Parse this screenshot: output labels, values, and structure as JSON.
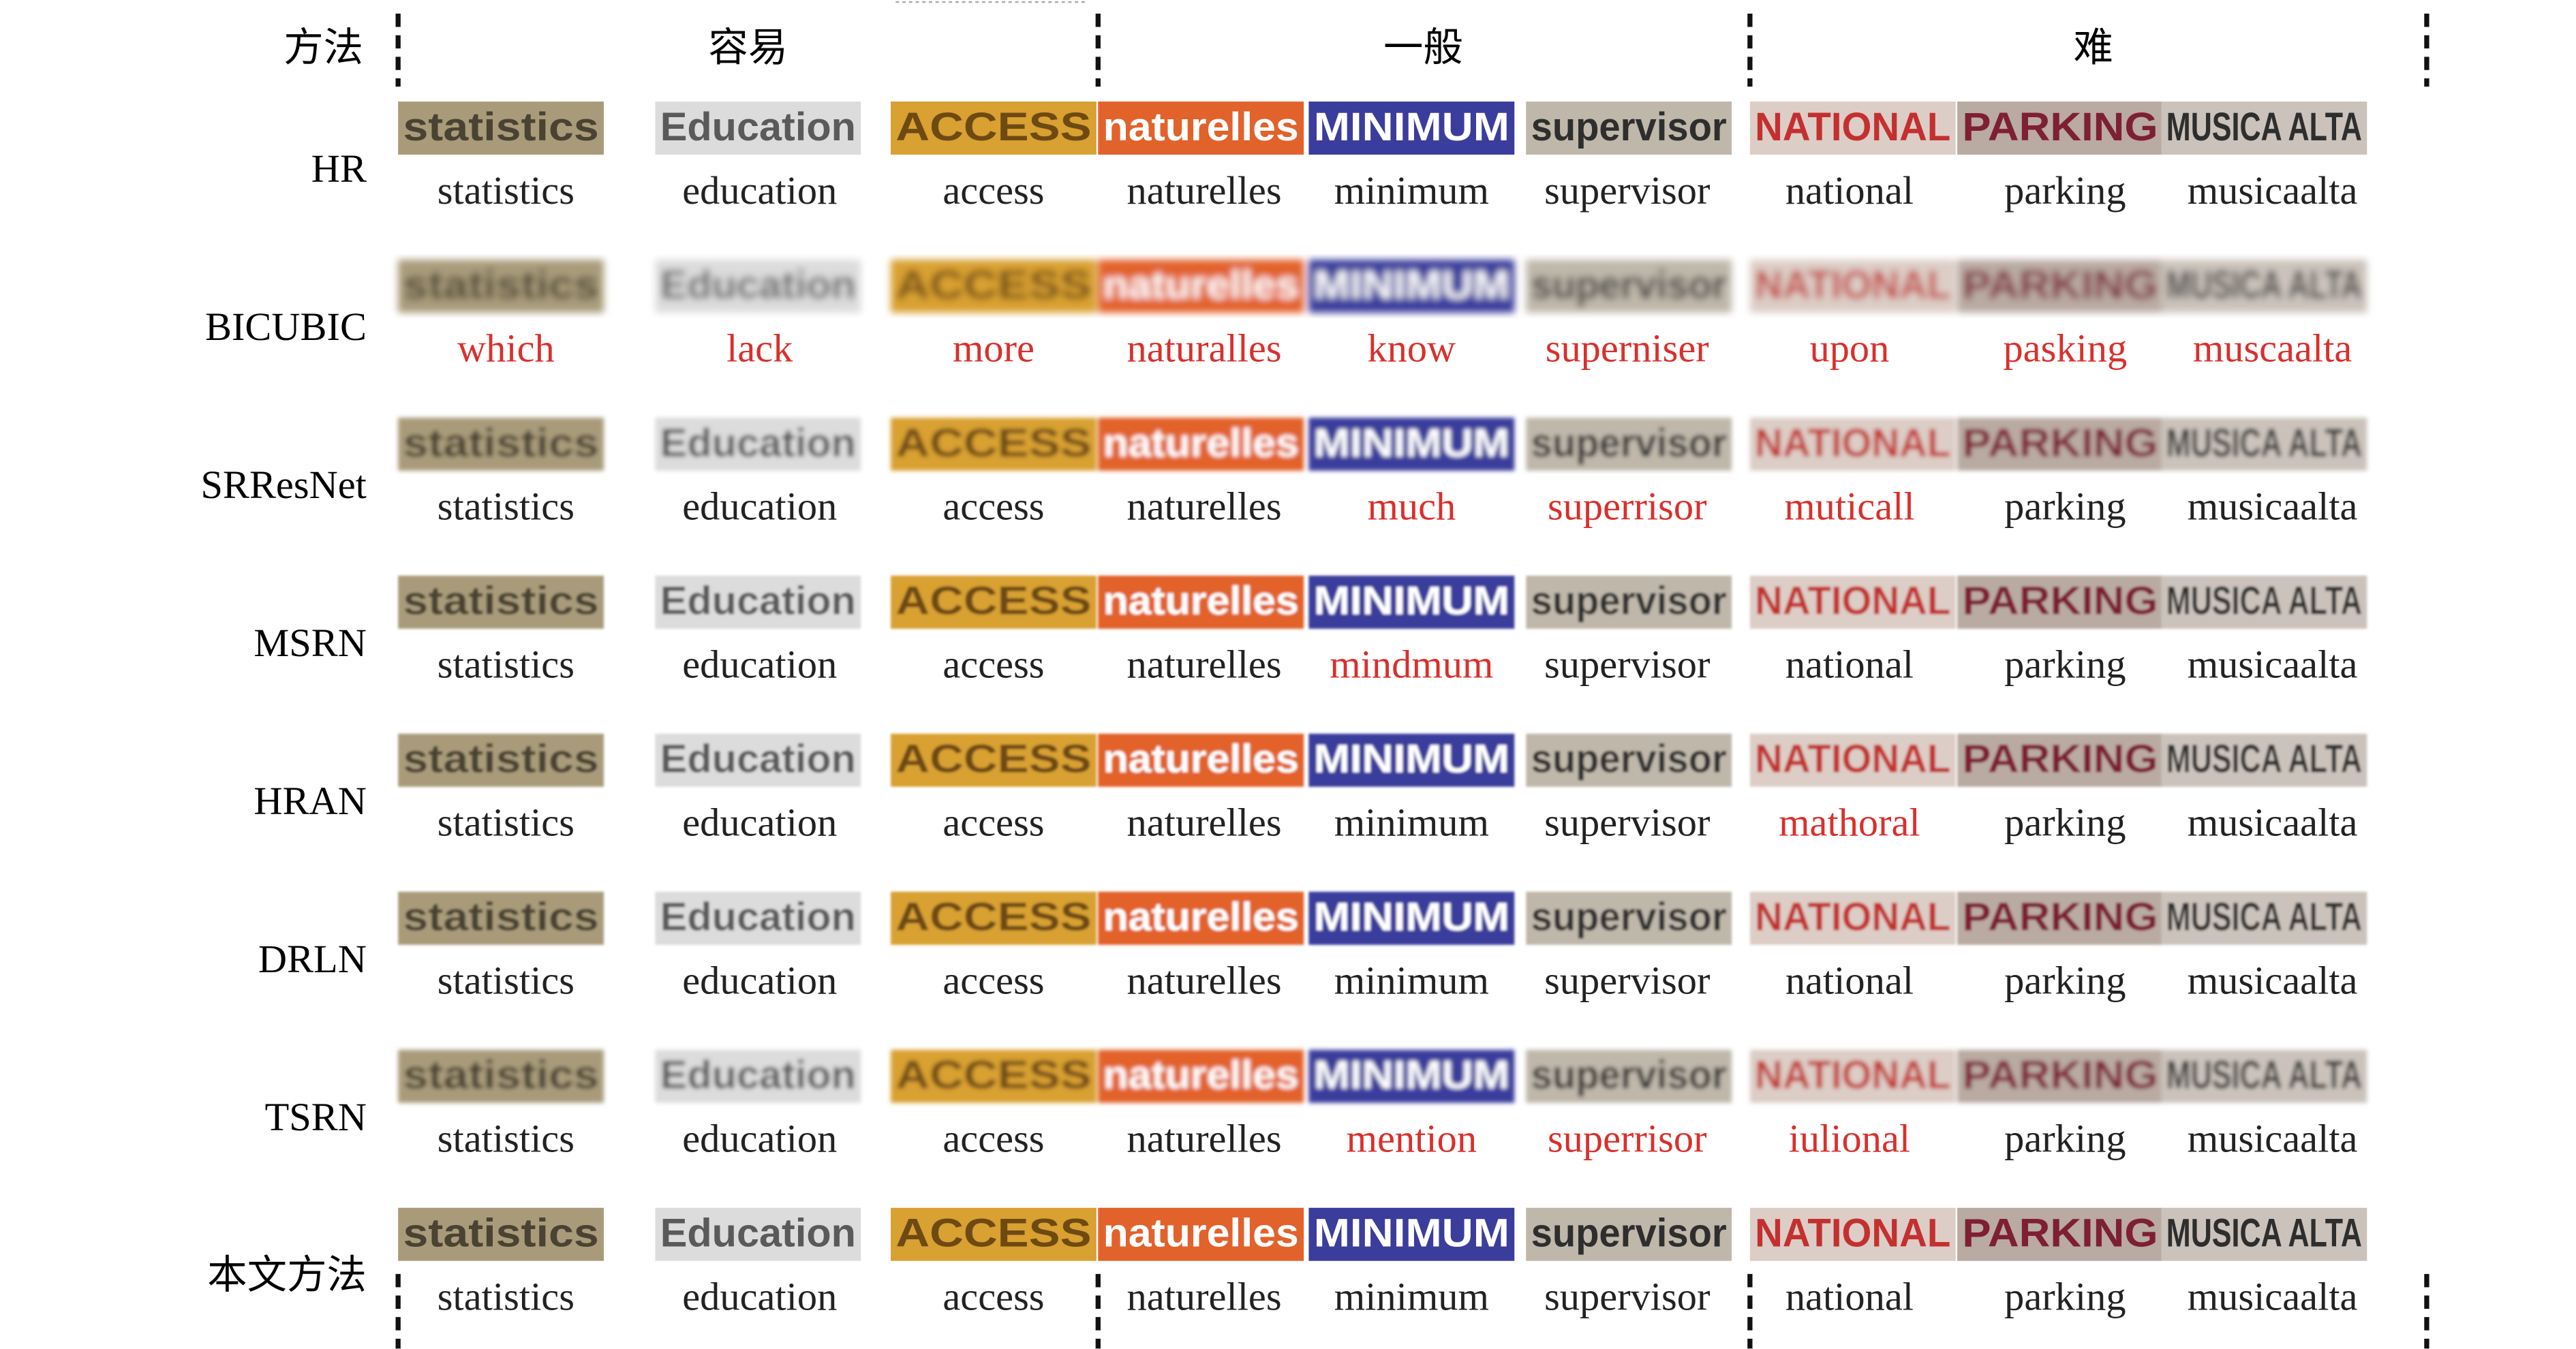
{
  "header": {
    "method": "方法",
    "groups": [
      "容易",
      "一般",
      "难"
    ]
  },
  "images": [
    {
      "text": "statistics",
      "bg": "#a99b7a",
      "fg": "#4a4232"
    },
    {
      "text": "Education",
      "bg": "#dcdcdc",
      "fg": "#5a5a5a"
    },
    {
      "text": "ACCESS",
      "bg": "#d9a032",
      "fg": "#6e4a12"
    },
    {
      "text": "naturelles",
      "bg": "#e2622c",
      "fg": "#ffffff"
    },
    {
      "text": "MINIMUM",
      "bg": "#3b3d9c",
      "fg": "#ffffff"
    },
    {
      "text": "supervisor",
      "bg": "#bfb7aa",
      "fg": "#2e2e2e"
    },
    {
      "text": "NATIONAL",
      "bg": "#dccdc6",
      "fg": "#c3302f"
    },
    {
      "text": "PARKING",
      "bg": "#b9aaa2",
      "fg": "#7e1f33"
    },
    {
      "text": "MUSICA ALTA",
      "bg": "#cbc3bb",
      "fg": "#2e2e2e"
    }
  ],
  "rows": [
    {
      "method": "HR",
      "predictions": [
        "statistics",
        "education",
        "access",
        "naturelles",
        "minimum",
        "supervisor",
        "national",
        "parking",
        "musicaalta"
      ],
      "colors": [
        "#222",
        "#222",
        "#222",
        "#222",
        "#222",
        "#222",
        "#222",
        "#222",
        "#222"
      ]
    },
    {
      "method": "BICUBIC",
      "predictions": [
        "which",
        "lack",
        "more",
        "naturalles",
        "know",
        "superniser",
        "upon",
        "pasking",
        "muscaalta"
      ],
      "colors": [
        "#d9302c",
        "#d9302c",
        "#d9302c",
        "#d9302c",
        "#d9302c",
        "#d9302c",
        "#d9302c",
        "#d9302c",
        "#d9302c"
      ]
    },
    {
      "method": "SRResNet",
      "predictions": [
        "statistics",
        "education",
        "access",
        "naturelles",
        "much",
        "superrisor",
        "muticall",
        "parking",
        "musicaalta"
      ],
      "colors": [
        "#222",
        "#222",
        "#222",
        "#222",
        "#d9302c",
        "#d9302c",
        "#d9302c",
        "#222",
        "#222"
      ]
    },
    {
      "method": "MSRN",
      "predictions": [
        "statistics",
        "education",
        "access",
        "naturelles",
        "mindmum",
        "supervisor",
        "national",
        "parking",
        "musicaalta"
      ],
      "colors": [
        "#222",
        "#222",
        "#222",
        "#222",
        "#d9302c",
        "#222",
        "#222",
        "#222",
        "#222"
      ]
    },
    {
      "method": "HRAN",
      "predictions": [
        "statistics",
        "education",
        "access",
        "naturelles",
        "minimum",
        "supervisor",
        "mathoral",
        "parking",
        "musicaalta"
      ],
      "colors": [
        "#222",
        "#222",
        "#222",
        "#222",
        "#222",
        "#222",
        "#d9302c",
        "#222",
        "#222"
      ]
    },
    {
      "method": "DRLN",
      "predictions": [
        "statistics",
        "education",
        "access",
        "naturelles",
        "minimum",
        "supervisor",
        "national",
        "parking",
        "musicaalta"
      ],
      "colors": [
        "#222",
        "#222",
        "#222",
        "#222",
        "#222",
        "#222",
        "#222",
        "#222",
        "#222"
      ]
    },
    {
      "method": "TSRN",
      "predictions": [
        "statistics",
        "education",
        "access",
        "naturelles",
        "mention",
        "superrisor",
        "iulional",
        "parking",
        "musicaalta"
      ],
      "colors": [
        "#222",
        "#222",
        "#222",
        "#222",
        "#d9302c",
        "#d9302c",
        "#d9302c",
        "#222",
        "#222"
      ]
    },
    {
      "method": "本文方法",
      "predictions": [
        "statistics",
        "education",
        "access",
        "naturelles",
        "minimum",
        "supervisor",
        "national",
        "parking",
        "musicaalta"
      ],
      "colors": [
        "#222",
        "#222",
        "#222",
        "#222",
        "#222",
        "#222",
        "#222",
        "#222",
        "#222"
      ]
    }
  ]
}
